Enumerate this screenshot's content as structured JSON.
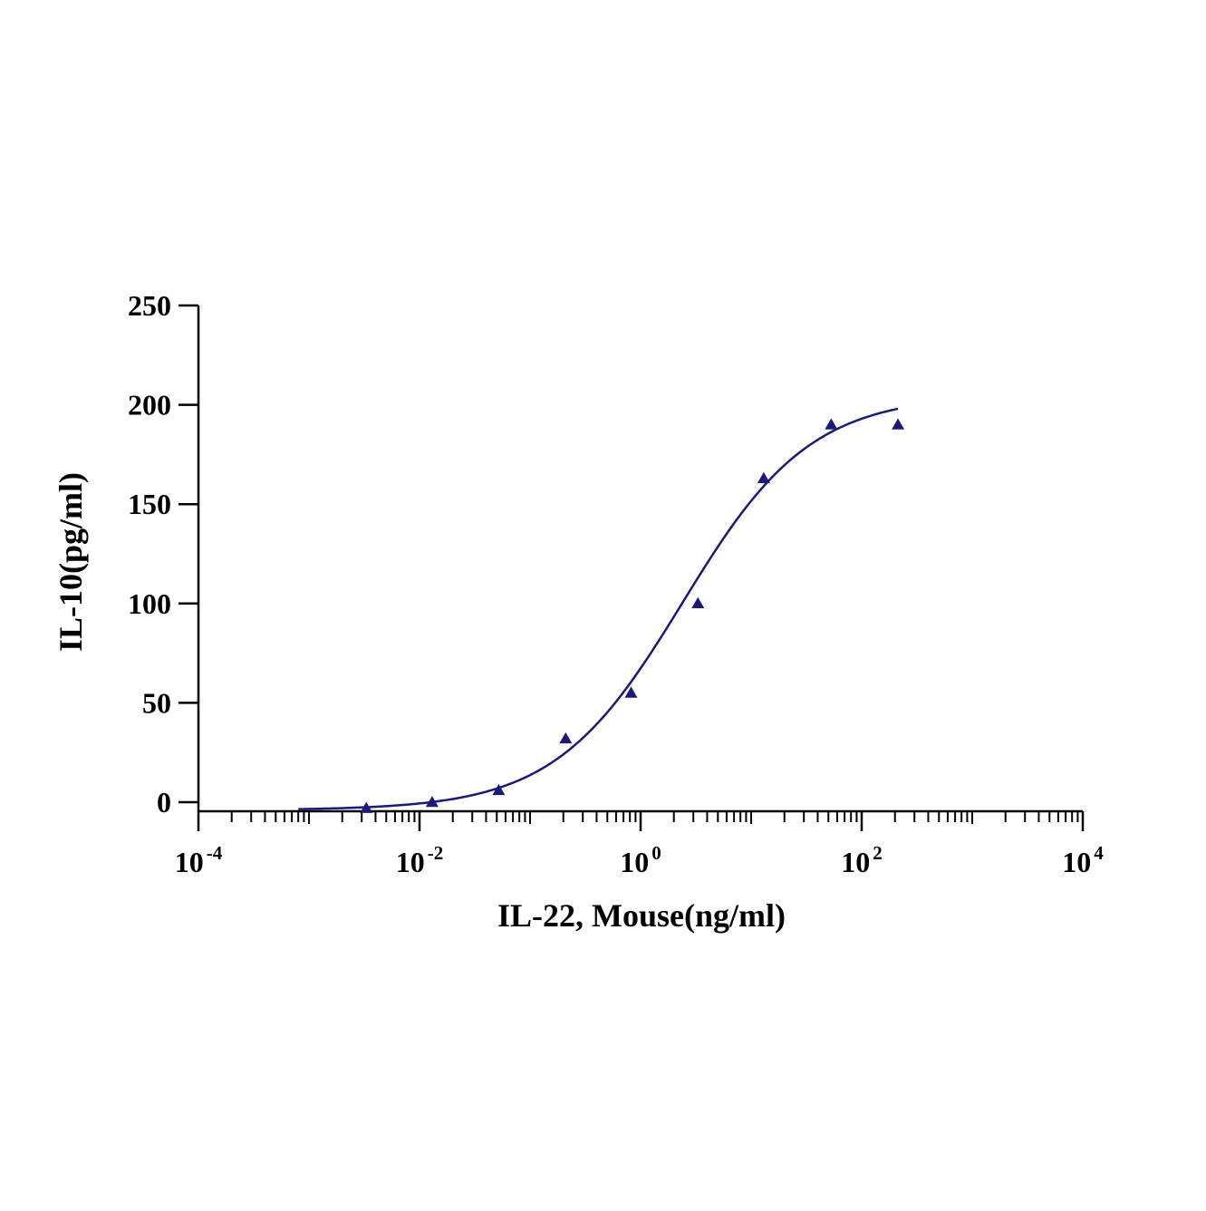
{
  "chart_data": {
    "type": "scatter",
    "xlabel": "IL-22, Mouse(ng/ml)",
    "ylabel": "IL-10(pg/ml)",
    "x_scale": "log10",
    "xlim": [
      0.0001,
      10000
    ],
    "ylim": [
      -5,
      250
    ],
    "y_ticks": [
      0,
      50,
      100,
      150,
      200,
      250
    ],
    "x_ticks": [
      {
        "value": 0.0001,
        "base": "10",
        "exp": "-4"
      },
      {
        "value": 0.01,
        "base": "10",
        "exp": "-2"
      },
      {
        "value": 1,
        "base": "10",
        "exp": "0"
      },
      {
        "value": 100,
        "base": "10",
        "exp": "2"
      },
      {
        "value": 10000,
        "base": "10",
        "exp": "4"
      }
    ],
    "grid": false,
    "legend": "none",
    "series": [
      {
        "marker": "triangle",
        "color": "#1a1a7a",
        "points": [
          {
            "x": 0.0033,
            "y": -3
          },
          {
            "x": 0.013,
            "y": 0
          },
          {
            "x": 0.052,
            "y": 6
          },
          {
            "x": 0.21,
            "y": 32
          },
          {
            "x": 0.82,
            "y": 55
          },
          {
            "x": 3.3,
            "y": 100
          },
          {
            "x": 13,
            "y": 163
          },
          {
            "x": 53,
            "y": 190
          },
          {
            "x": 213,
            "y": 190
          }
        ]
      }
    ],
    "fit": {
      "type": "4PL",
      "color": "#1a1a7a",
      "bottom": -4,
      "top": 205,
      "ec50": 2.4,
      "hill": 0.75,
      "x_range": [
        0.0008,
        213
      ]
    }
  }
}
